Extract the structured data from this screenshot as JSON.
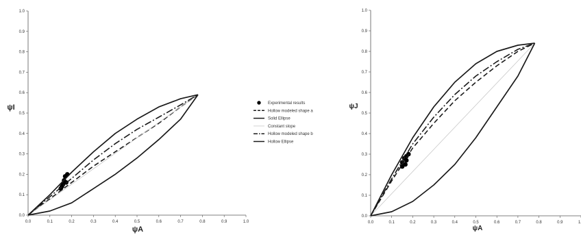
{
  "chart_data": [
    {
      "type": "line",
      "title": "",
      "xlabel": "ψA",
      "ylabel": "ψI",
      "xlim": [
        0,
        1
      ],
      "ylim": [
        0,
        1
      ],
      "xticks": [
        "0.0",
        "0.1",
        "0.2",
        "0.3",
        "0.4",
        "0.5",
        "0.6",
        "0.7",
        "0.8",
        "0.9",
        "1.0"
      ],
      "yticks": [
        "0.0",
        "0.1",
        "0.2",
        "0.3",
        "0.4",
        "0.5",
        "0.6",
        "0.7",
        "0.8",
        "0.9",
        "1.0"
      ],
      "grid": false,
      "series": [
        {
          "name": "Experimental results",
          "style": "points",
          "points": [
            [
              0.15,
              0.13
            ],
            [
              0.16,
              0.15
            ],
            [
              0.165,
              0.17
            ],
            [
              0.17,
              0.19
            ],
            [
              0.18,
              0.2
            ],
            [
              0.175,
              0.16
            ],
            [
              0.155,
              0.14
            ]
          ]
        },
        {
          "name": "Hollow modeled shape a",
          "style": "dashed",
          "points": [
            [
              0,
              0
            ],
            [
              0.1,
              0.08
            ],
            [
              0.2,
              0.16
            ],
            [
              0.3,
              0.24
            ],
            [
              0.4,
              0.31
            ],
            [
              0.5,
              0.38
            ],
            [
              0.6,
              0.45
            ],
            [
              0.7,
              0.53
            ],
            [
              0.78,
              0.59
            ]
          ]
        },
        {
          "name": "Solid Ellipse",
          "style": "solid",
          "points": [
            [
              0,
              0
            ],
            [
              0.1,
              0.1
            ],
            [
              0.2,
              0.21
            ],
            [
              0.3,
              0.31
            ],
            [
              0.4,
              0.4
            ],
            [
              0.5,
              0.47
            ],
            [
              0.6,
              0.53
            ],
            [
              0.7,
              0.57
            ],
            [
              0.78,
              0.59
            ]
          ]
        },
        {
          "name": "Constant slope",
          "style": "thin",
          "points": [
            [
              0,
              0
            ],
            [
              0.78,
              0.59
            ]
          ]
        },
        {
          "name": "Hollow modeled shape b",
          "style": "dashdot",
          "points": [
            [
              0,
              0
            ],
            [
              0.1,
              0.09
            ],
            [
              0.2,
              0.18
            ],
            [
              0.3,
              0.27
            ],
            [
              0.4,
              0.35
            ],
            [
              0.5,
              0.42
            ],
            [
              0.6,
              0.48
            ],
            [
              0.7,
              0.54
            ],
            [
              0.78,
              0.59
            ]
          ]
        },
        {
          "name": "Hollow Ellipse",
          "style": "solid",
          "points": [
            [
              0,
              0
            ],
            [
              0.1,
              0.02
            ],
            [
              0.2,
              0.06
            ],
            [
              0.3,
              0.13
            ],
            [
              0.4,
              0.2
            ],
            [
              0.5,
              0.28
            ],
            [
              0.6,
              0.37
            ],
            [
              0.7,
              0.47
            ],
            [
              0.78,
              0.59
            ]
          ]
        }
      ]
    },
    {
      "type": "line",
      "title": "",
      "xlabel": "ψA",
      "ylabel": "ψJ",
      "xlim": [
        0,
        1
      ],
      "ylim": [
        0,
        1
      ],
      "xticks": [
        "0.0",
        "0.1",
        "0.2",
        "0.3",
        "0.4",
        "0.5",
        "0.6",
        "0.7",
        "0.8",
        "0.9",
        "1.0"
      ],
      "yticks": [
        "0.0",
        "0.1",
        "0.2",
        "0.3",
        "0.4",
        "0.5",
        "0.6",
        "0.7",
        "0.8",
        "0.9",
        "1.0"
      ],
      "grid": false,
      "series": [
        {
          "name": "Experimental results",
          "style": "points",
          "points": [
            [
              0.15,
              0.26
            ],
            [
              0.16,
              0.28
            ],
            [
              0.17,
              0.29
            ],
            [
              0.18,
              0.3
            ],
            [
              0.17,
              0.27
            ],
            [
              0.15,
              0.24
            ],
            [
              0.165,
              0.25
            ]
          ]
        },
        {
          "name": "Hollow modeled shape a",
          "style": "dashed",
          "points": [
            [
              0,
              0
            ],
            [
              0.1,
              0.17
            ],
            [
              0.2,
              0.33
            ],
            [
              0.3,
              0.45
            ],
            [
              0.4,
              0.56
            ],
            [
              0.5,
              0.65
            ],
            [
              0.6,
              0.73
            ],
            [
              0.7,
              0.8
            ],
            [
              0.78,
              0.84
            ]
          ]
        },
        {
          "name": "Solid Ellipse",
          "style": "solid",
          "points": [
            [
              0,
              0
            ],
            [
              0.1,
              0.2
            ],
            [
              0.2,
              0.38
            ],
            [
              0.3,
              0.53
            ],
            [
              0.4,
              0.65
            ],
            [
              0.5,
              0.74
            ],
            [
              0.6,
              0.8
            ],
            [
              0.7,
              0.83
            ],
            [
              0.78,
              0.84
            ]
          ]
        },
        {
          "name": "Constant slope",
          "style": "thin",
          "points": [
            [
              0,
              0
            ],
            [
              0.78,
              0.84
            ]
          ]
        },
        {
          "name": "Hollow modeled shape b",
          "style": "dashdot",
          "points": [
            [
              0,
              0
            ],
            [
              0.1,
              0.18
            ],
            [
              0.2,
              0.35
            ],
            [
              0.3,
              0.48
            ],
            [
              0.4,
              0.59
            ],
            [
              0.5,
              0.68
            ],
            [
              0.6,
              0.75
            ],
            [
              0.7,
              0.81
            ],
            [
              0.78,
              0.84
            ]
          ]
        },
        {
          "name": "Hollow Ellipse",
          "style": "solid",
          "points": [
            [
              0,
              0
            ],
            [
              0.1,
              0.02
            ],
            [
              0.2,
              0.07
            ],
            [
              0.3,
              0.15
            ],
            [
              0.4,
              0.25
            ],
            [
              0.5,
              0.38
            ],
            [
              0.6,
              0.53
            ],
            [
              0.7,
              0.68
            ],
            [
              0.78,
              0.84
            ]
          ]
        }
      ]
    }
  ],
  "legend": {
    "placement": "center",
    "entries": [
      {
        "name": "Experimental results",
        "style": "points"
      },
      {
        "name": "Hollow modeled shape a",
        "style": "dashed"
      },
      {
        "name": "Solid Ellipse",
        "style": "solid"
      },
      {
        "name": "Constant slope",
        "style": "thin"
      },
      {
        "name": "Hollow modeled shape b",
        "style": "dashdot"
      },
      {
        "name": "Hollow Ellipse",
        "style": "solid"
      }
    ]
  },
  "colors": {
    "lines": "#1a1a1a",
    "constant_slope": "#c8c8c8",
    "axes": "#555555",
    "points": "#000000"
  }
}
